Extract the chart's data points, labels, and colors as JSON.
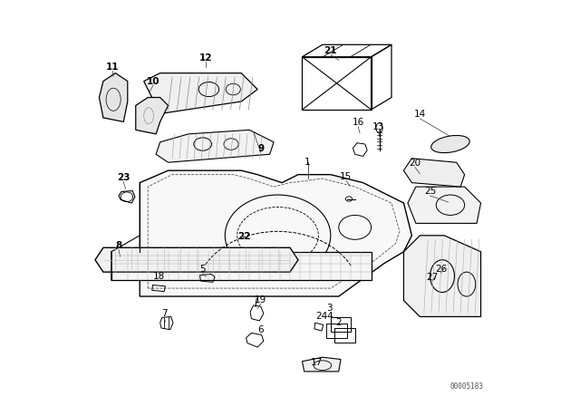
{
  "title": "",
  "background_color": "#ffffff",
  "figure_width": 6.4,
  "figure_height": 4.48,
  "dpi": 100,
  "watermark": "00005183"
}
